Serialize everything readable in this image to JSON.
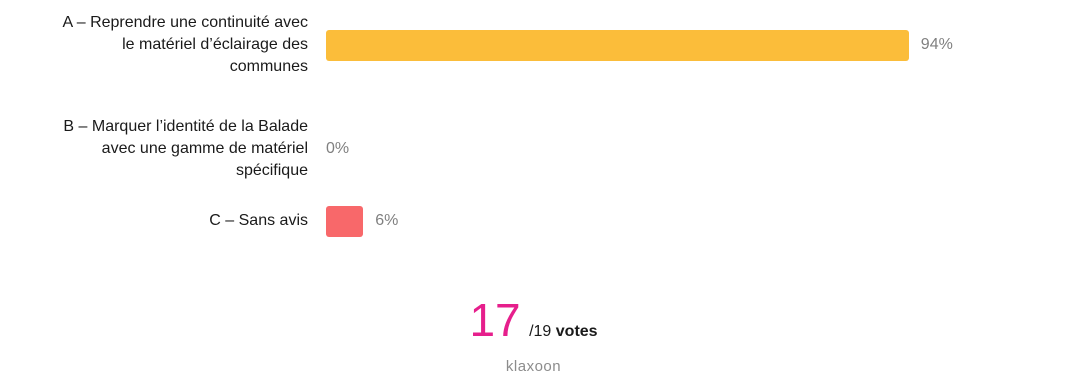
{
  "chart_data": {
    "type": "bar",
    "orientation": "horizontal",
    "categories": [
      "A – Reprendre une continuité avec\nle matériel d’éclairage des\ncommunes",
      "B – Marquer l’identité de la Balade\navec une gamme de matériel\nspécifique",
      "C – Sans avis"
    ],
    "values": [
      94,
      0,
      6
    ],
    "value_labels": [
      "94%",
      "0%",
      "6%"
    ],
    "colors": [
      "#FBBD3A",
      "#FBBD3A",
      "#F8686A"
    ],
    "xlim": [
      0,
      100
    ],
    "grid": false,
    "legend": false
  },
  "votes": {
    "count": "17",
    "count_color": "#E61F8C",
    "total": "/19",
    "word": "votes"
  },
  "brand": "klaxoon"
}
